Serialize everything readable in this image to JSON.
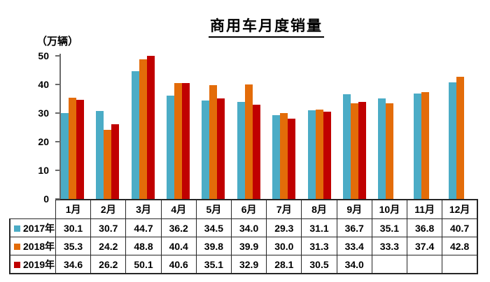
{
  "title": "商用车月度销量",
  "y_axis": {
    "unit_label": "（万辆）",
    "ticks": [
      0,
      10,
      20,
      30,
      40,
      50
    ]
  },
  "colors": {
    "y2017": "#4BACC6",
    "y2018": "#E36C09",
    "y2019": "#C00000",
    "axis": "#6b6b6b",
    "table_border": "#262626"
  },
  "chart_data": {
    "type": "bar",
    "title": "商用车月度销量",
    "ylabel": "（万辆）",
    "ylim": [
      0,
      50
    ],
    "yticks": [
      0,
      10,
      20,
      30,
      40,
      50
    ],
    "grid": false,
    "legend_position": "data-table-left",
    "data_table_shown": true,
    "categories": [
      "1月",
      "2月",
      "3月",
      "4月",
      "5月",
      "6月",
      "7月",
      "8月",
      "9月",
      "10月",
      "11月",
      "12月"
    ],
    "series": [
      {
        "name": "2017年",
        "color_key": "y2017",
        "values": [
          30.1,
          30.7,
          44.7,
          36.2,
          34.5,
          34.0,
          29.3,
          31.1,
          36.7,
          35.1,
          36.8,
          40.7
        ]
      },
      {
        "name": "2018年",
        "color_key": "y2018",
        "values": [
          35.3,
          24.2,
          48.8,
          40.4,
          39.8,
          39.9,
          30.0,
          31.3,
          33.4,
          33.3,
          37.4,
          42.8
        ]
      },
      {
        "name": "2019年",
        "color_key": "y2019",
        "values": [
          34.6,
          26.2,
          50.1,
          40.6,
          35.1,
          32.9,
          28.1,
          30.5,
          34.0,
          null,
          null,
          null
        ]
      }
    ]
  }
}
